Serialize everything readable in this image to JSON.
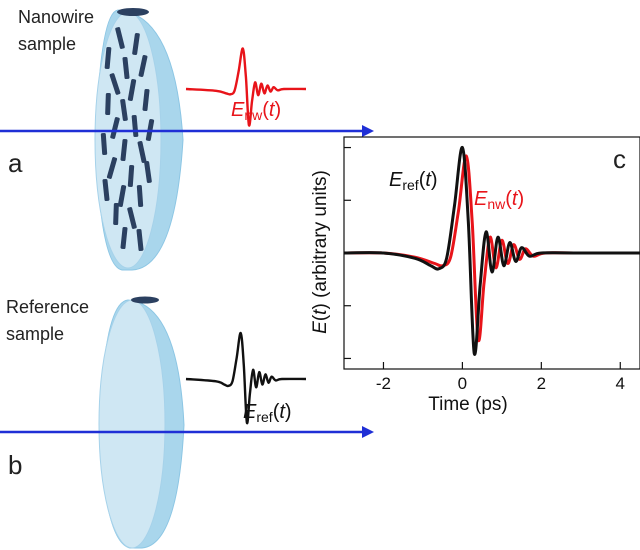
{
  "panel_a": {
    "label": "a",
    "sample_label_line1": "Nanowire",
    "sample_label_line2": "sample",
    "signal_E": "E",
    "signal_sub": "nw",
    "signal_open": "(",
    "signal_t": "t",
    "signal_close": ")"
  },
  "panel_b": {
    "label": "b",
    "sample_label_line1": "Reference",
    "sample_label_line2": "sample",
    "signal_E": "E",
    "signal_sub": "ref",
    "signal_open": "(",
    "signal_t": "t",
    "signal_close": ")"
  },
  "panel_c": {
    "label": "c",
    "ref_E": "E",
    "ref_sub": "ref",
    "nw_E": "E",
    "nw_sub": "nw",
    "paren_open": "(",
    "paren_t": "t",
    "paren_close": ")",
    "ylabel_E": "E",
    "ylabel_open": "(",
    "ylabel_t": "t",
    "ylabel_rest": ") (arbitrary units)",
    "xlabel": "Time (ps)"
  },
  "colors": {
    "beam": "#1f2fd6",
    "disk_face": "#c9e4f2",
    "disk_edge": "#9fd0ea",
    "nanowire": "#2b4060",
    "ref_trace": "#111111",
    "nw_trace": "#e8141a"
  },
  "chart_data": {
    "type": "line",
    "title": "",
    "xlabel": "Time (ps)",
    "ylabel": "E(t) (arbitrary units)",
    "xlim": [
      -3,
      4.5
    ],
    "ylim": [
      -1.1,
      1.1
    ],
    "x_ticks": [
      "-2",
      "0",
      "2",
      "4"
    ],
    "x_tick_values": [
      -2,
      0,
      2,
      4
    ],
    "grid": false,
    "series": [
      {
        "name": "Eref(t)",
        "color": "#111111",
        "x": [
          -3,
          -2,
          -1.2,
          -0.8,
          -0.6,
          -0.4,
          -0.2,
          0,
          0.15,
          0.3,
          0.45,
          0.6,
          0.75,
          0.9,
          1.05,
          1.2,
          1.35,
          1.5,
          1.7,
          2,
          3,
          4.5
        ],
        "y": [
          0,
          0,
          -0.05,
          -0.12,
          -0.15,
          -0.05,
          0.45,
          1.0,
          0.3,
          -0.95,
          -0.3,
          0.2,
          -0.18,
          0.15,
          -0.12,
          0.1,
          -0.08,
          0.05,
          -0.03,
          0,
          0,
          0
        ]
      },
      {
        "name": "Enw(t)",
        "color": "#e8141a",
        "x": [
          -3,
          -2,
          -1.2,
          -0.7,
          -0.5,
          -0.3,
          -0.1,
          0.1,
          0.25,
          0.4,
          0.55,
          0.7,
          0.85,
          1.0,
          1.15,
          1.3,
          1.45,
          1.6,
          1.8,
          2.1,
          3,
          4.5
        ],
        "y": [
          0,
          0,
          -0.04,
          -0.1,
          -0.12,
          -0.04,
          0.4,
          0.92,
          0.28,
          -0.82,
          -0.28,
          0.15,
          -0.14,
          0.12,
          -0.1,
          0.08,
          -0.06,
          0.04,
          -0.03,
          0,
          0,
          0
        ]
      }
    ]
  }
}
